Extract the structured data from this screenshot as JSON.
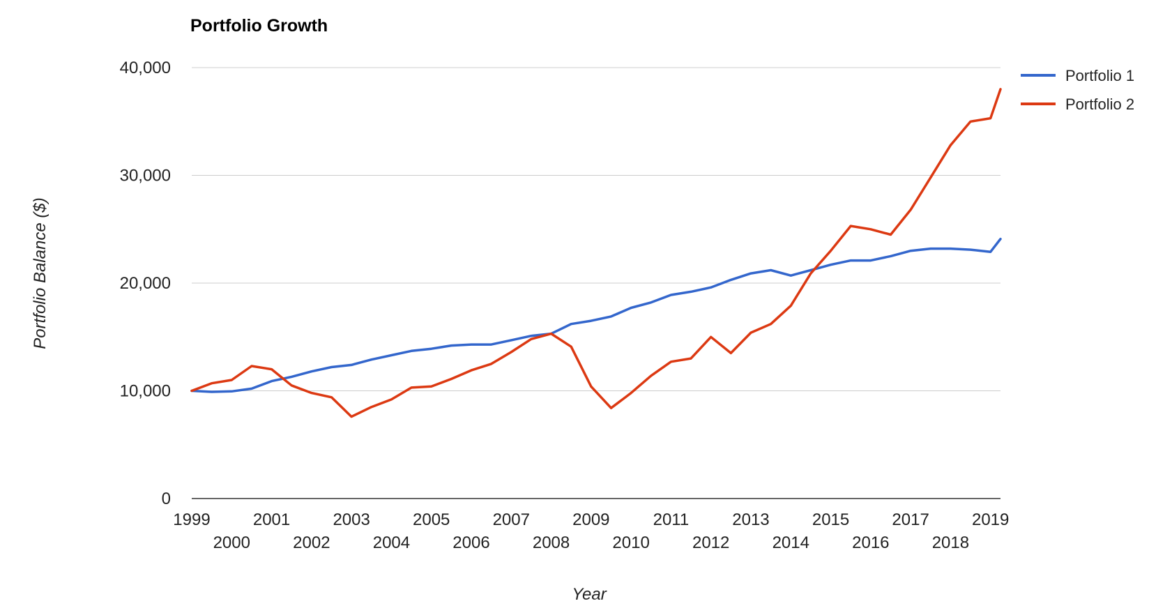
{
  "chart_data": {
    "type": "line",
    "title": "Portfolio Growth",
    "xlabel": "Year",
    "ylabel": "Portfolio Balance ($)",
    "ylim": [
      0,
      40000
    ],
    "y_ticks": [
      "0",
      "10,000",
      "20,000",
      "30,000",
      "40,000"
    ],
    "x_ticks": [
      "1999",
      "2000",
      "2001",
      "2002",
      "2003",
      "2004",
      "2005",
      "2006",
      "2007",
      "2008",
      "2009",
      "2010",
      "2011",
      "2012",
      "2013",
      "2014",
      "2015",
      "2016",
      "2017",
      "2018",
      "2019"
    ],
    "grid": true,
    "legend_position": "right",
    "x": [
      "1999-01",
      "1999-07",
      "2000-01",
      "2000-07",
      "2001-01",
      "2001-07",
      "2002-01",
      "2002-07",
      "2003-01",
      "2003-07",
      "2004-01",
      "2004-07",
      "2005-01",
      "2005-07",
      "2006-01",
      "2006-07",
      "2007-01",
      "2007-07",
      "2008-01",
      "2008-07",
      "2009-01",
      "2009-07",
      "2010-01",
      "2010-07",
      "2011-01",
      "2011-07",
      "2012-01",
      "2012-07",
      "2013-01",
      "2013-07",
      "2014-01",
      "2014-07",
      "2015-01",
      "2015-07",
      "2016-01",
      "2016-07",
      "2017-01",
      "2017-07",
      "2018-01",
      "2018-07",
      "2019-01",
      "2019-04"
    ],
    "series": [
      {
        "name": "Portfolio 1",
        "color": "#3366cc",
        "values": [
          10000,
          9900,
          9950,
          10200,
          10900,
          11300,
          11800,
          12200,
          12400,
          12900,
          13300,
          13700,
          13900,
          14200,
          14300,
          14300,
          14700,
          15100,
          15300,
          16200,
          16500,
          16900,
          17700,
          18200,
          18900,
          19200,
          19600,
          20300,
          20900,
          21200,
          20700,
          21200,
          21700,
          22100,
          22100,
          22500,
          23000,
          23200,
          23200,
          23100,
          22900,
          24100
        ]
      },
      {
        "name": "Portfolio 2",
        "color": "#dc3912",
        "values": [
          10000,
          10700,
          11000,
          12300,
          12000,
          10500,
          9800,
          9400,
          7600,
          8500,
          9200,
          10300,
          10400,
          11100,
          11900,
          12500,
          13600,
          14800,
          15300,
          14100,
          10400,
          8400,
          9800,
          11400,
          12700,
          13000,
          15000,
          13500,
          15400,
          16200,
          17900,
          20900,
          23000,
          25300,
          25000,
          24500,
          26800,
          29800,
          32800,
          35000,
          35300,
          38000
        ]
      }
    ]
  }
}
